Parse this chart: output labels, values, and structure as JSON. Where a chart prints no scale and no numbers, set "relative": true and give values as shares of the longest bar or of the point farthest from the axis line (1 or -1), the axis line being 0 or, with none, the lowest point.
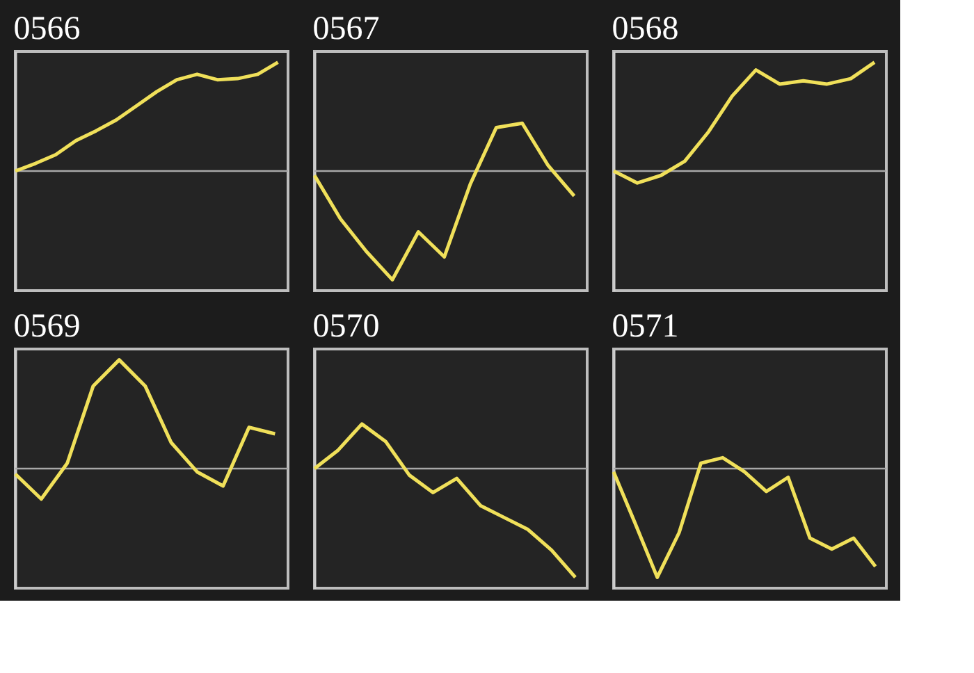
{
  "chart_data": [
    {
      "type": "line",
      "title": "0566",
      "relative": true,
      "categories": [
        null,
        null,
        null,
        null,
        null,
        null,
        null,
        null,
        null,
        null,
        null,
        null,
        null,
        null
      ],
      "series": [
        {
          "color": "#f0e05a",
          "values": [
            0,
            0.07,
            0.15,
            0.28,
            0.37,
            0.47,
            0.6,
            0.73,
            0.84,
            0.89,
            0.84,
            0.85,
            0.89,
            1
          ]
        }
      ]
    },
    {
      "type": "line",
      "title": "0567",
      "relative": true,
      "categories": [
        null,
        null,
        null,
        null,
        null,
        null,
        null,
        null,
        null,
        null,
        null
      ],
      "series": [
        {
          "color": "#f0e05a",
          "values": [
            -0.04,
            -0.44,
            -0.74,
            -1,
            -0.56,
            -0.79,
            -0.12,
            0.4,
            0.44,
            0.05,
            -0.23
          ]
        }
      ]
    },
    {
      "type": "line",
      "title": "0568",
      "relative": true,
      "categories": [
        null,
        null,
        null,
        null,
        null,
        null,
        null,
        null,
        null,
        null,
        null,
        null
      ],
      "series": [
        {
          "color": "#f0e05a",
          "values": [
            0,
            -0.11,
            -0.04,
            0.09,
            0.36,
            0.69,
            0.93,
            0.8,
            0.83,
            0.8,
            0.85,
            1
          ]
        }
      ]
    },
    {
      "type": "line",
      "title": "0569",
      "relative": true,
      "categories": [
        null,
        null,
        null,
        null,
        null,
        null,
        null,
        null,
        null,
        null,
        null
      ],
      "series": [
        {
          "color": "#f0e05a",
          "values": [
            -0.05,
            -0.28,
            0.05,
            0.76,
            1,
            0.76,
            0.24,
            -0.03,
            -0.16,
            0.38,
            0.32
          ]
        }
      ]
    },
    {
      "type": "line",
      "title": "0570",
      "relative": true,
      "categories": [
        null,
        null,
        null,
        null,
        null,
        null,
        null,
        null,
        null,
        null,
        null,
        null
      ],
      "series": [
        {
          "color": "#f0e05a",
          "values": [
            0,
            0.17,
            0.41,
            0.25,
            -0.06,
            -0.22,
            -0.09,
            -0.34,
            -0.45,
            -0.56,
            -0.75,
            -1
          ]
        }
      ]
    },
    {
      "type": "line",
      "title": "0571",
      "relative": true,
      "categories": [
        null,
        null,
        null,
        null,
        null,
        null,
        null,
        null,
        null,
        null,
        null,
        null,
        null
      ],
      "series": [
        {
          "color": "#f0e05a",
          "values": [
            -0.03,
            -0.51,
            -1,
            -0.59,
            0.05,
            0.1,
            -0.03,
            -0.21,
            -0.08,
            -0.64,
            -0.74,
            -0.64,
            -0.9
          ]
        }
      ]
    }
  ]
}
